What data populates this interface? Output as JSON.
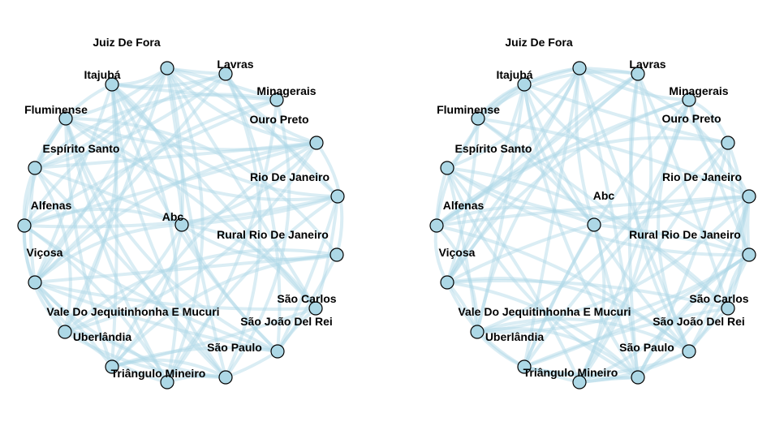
{
  "colors": {
    "edge": "#add8e6",
    "node_fill": "#add8e6",
    "node_stroke": "#000000",
    "label": "#000000",
    "background": "#ffffff"
  },
  "graphs": [
    {
      "id": "left",
      "nodes": [
        {
          "name": "Juiz De Fora"
        },
        {
          "name": "Lavras"
        },
        {
          "name": "Minagerais"
        },
        {
          "name": "Ouro Preto"
        },
        {
          "name": "Rio De Janeiro"
        },
        {
          "name": "Rural Rio De Janeiro"
        },
        {
          "name": "São Carlos"
        },
        {
          "name": "São João Del Rei"
        },
        {
          "name": "São Paulo"
        },
        {
          "name": "Triângulo Mineiro"
        },
        {
          "name": "Uberlândia"
        },
        {
          "name": "Vale Do Jequitinhonha E Mucuri"
        },
        {
          "name": "Viçosa"
        },
        {
          "name": "Alfenas"
        },
        {
          "name": "Espírito Santo"
        },
        {
          "name": "Fluminense"
        },
        {
          "name": "Itajubá"
        },
        {
          "name": "Abc"
        }
      ]
    },
    {
      "id": "right",
      "nodes": [
        {
          "name": "Juiz De Fora"
        },
        {
          "name": "Lavras"
        },
        {
          "name": "Minagerais"
        },
        {
          "name": "Ouro Preto"
        },
        {
          "name": "Rio De Janeiro"
        },
        {
          "name": "Rural Rio De Janeiro"
        },
        {
          "name": "São Carlos"
        },
        {
          "name": "São João Del Rei"
        },
        {
          "name": "São Paulo"
        },
        {
          "name": "Triângulo Mineiro"
        },
        {
          "name": "Uberlândia"
        },
        {
          "name": "Vale Do Jequitinhonha E Mucuri"
        },
        {
          "name": "Viçosa"
        },
        {
          "name": "Alfenas"
        },
        {
          "name": "Espírito Santo"
        },
        {
          "name": "Fluminense"
        },
        {
          "name": "Itajubá"
        },
        {
          "name": "Abc"
        }
      ]
    }
  ]
}
